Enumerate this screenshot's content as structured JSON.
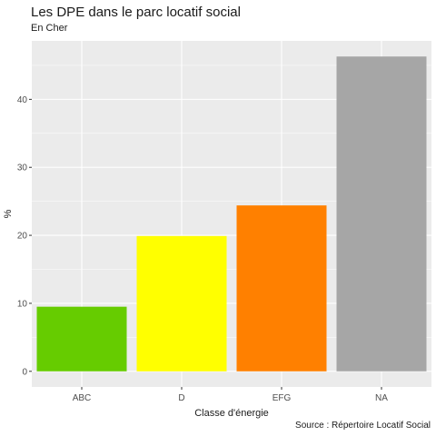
{
  "title": "Les DPE dans le parc locatif social",
  "subtitle": "En Cher",
  "caption": "Source : Répertoire Locatif Social",
  "chart_data": {
    "type": "bar",
    "categories": [
      "ABC",
      "D",
      "EFG",
      "NA"
    ],
    "values": [
      9.5,
      19.9,
      24.4,
      46.3
    ],
    "colors": [
      "#66CC00",
      "#FFFF00",
      "#FF8000",
      "#A6A6A6"
    ],
    "xlabel": "Classe d'énergie",
    "ylabel": "%",
    "yticks": [
      0,
      10,
      20,
      30,
      40
    ],
    "ylim": [
      -2.3,
      48.6
    ],
    "grid": true,
    "background": "#EBEBEB"
  }
}
